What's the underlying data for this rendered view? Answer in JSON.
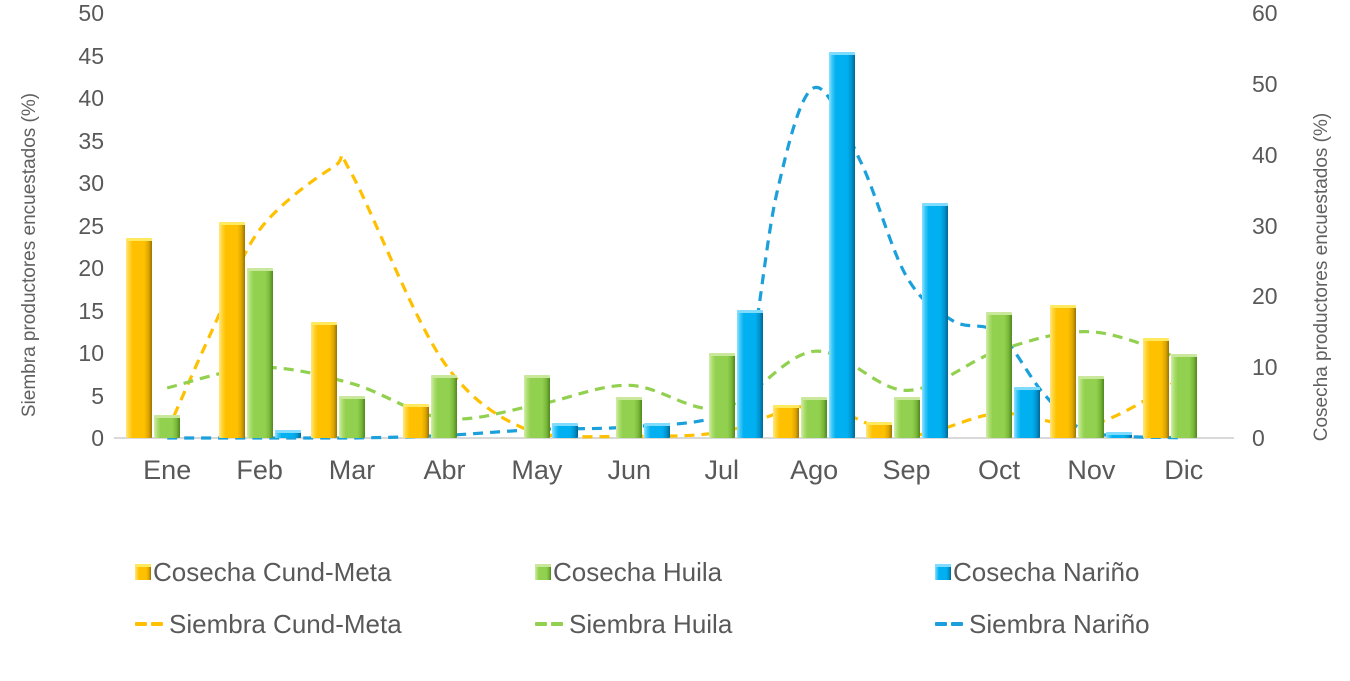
{
  "chart_data": {
    "type": "combo-bar-line",
    "categories": [
      "Ene",
      "Feb",
      "Mar",
      "Abr",
      "May",
      "Jun",
      "Jul",
      "Ago",
      "Sep",
      "Oct",
      "Nov",
      "Dic"
    ],
    "left_axis": {
      "title": "Siembra productores encuestados (%)",
      "min": 0,
      "max": 50,
      "step": 5,
      "ticks": [
        "50",
        "45",
        "40",
        "35",
        "30",
        "25",
        "20",
        "15",
        "10",
        "5",
        "0"
      ]
    },
    "right_axis": {
      "title": "Cosecha productores encuestados (%)",
      "min": 0,
      "max": 60,
      "step": 10,
      "ticks": [
        "60",
        "50",
        "40",
        "30",
        "20",
        "10",
        "0"
      ]
    },
    "gridlines": false,
    "legend_position": "bottom",
    "bar_series": [
      {
        "name": "Cosecha Cund-Meta",
        "axis": "right",
        "color": "#FFC000",
        "values": [
          28.3,
          30.5,
          16.4,
          4.8,
          0,
          0,
          0,
          4.6,
          2.2,
          0,
          18.8,
          14.1
        ]
      },
      {
        "name": "Cosecha Huila",
        "axis": "right",
        "color": "#92D050",
        "values": [
          3.2,
          24.0,
          5.9,
          8.9,
          8.9,
          5.8,
          12.0,
          5.8,
          5.8,
          17.8,
          8.8,
          11.8
        ]
      },
      {
        "name": "Cosecha Nariño",
        "axis": "right",
        "color": "#00B0F0",
        "values": [
          0,
          1.2,
          0,
          0,
          2.1,
          2.1,
          18.1,
          54.5,
          33.2,
          7.2,
          0.9,
          0
        ]
      }
    ],
    "line_series": [
      {
        "name": "Siembra Cund-Meta",
        "axis": "left",
        "color": "#FFC000",
        "style": "dashed",
        "points": [
          [
            0,
            0.8
          ],
          [
            0.5,
            13
          ],
          [
            1,
            24.5
          ],
          [
            1.8,
            31.9
          ],
          [
            2,
            31
          ],
          [
            3,
            8.8
          ],
          [
            4,
            0.5
          ],
          [
            5,
            0.2
          ],
          [
            6,
            0.7
          ],
          [
            7,
            3.8
          ],
          [
            8,
            0.3
          ],
          [
            9,
            2.9
          ],
          [
            10,
            1.6
          ],
          [
            11,
            7.2
          ]
        ]
      },
      {
        "name": "Siembra Huila",
        "axis": "left",
        "color": "#92D050",
        "style": "dashed",
        "points": [
          [
            0,
            5.9
          ],
          [
            1,
            8.3
          ],
          [
            2,
            6.4
          ],
          [
            3,
            2.3
          ],
          [
            4,
            3.9
          ],
          [
            5,
            6.2
          ],
          [
            6,
            3.5
          ],
          [
            7,
            10.2
          ],
          [
            8,
            5.6
          ],
          [
            9,
            10.3
          ],
          [
            10,
            12.5
          ],
          [
            11,
            9.2
          ]
        ]
      },
      {
        "name": "Siembra Nariño",
        "axis": "left",
        "color": "#1BA0DC",
        "style": "dashed",
        "points": [
          [
            0,
            0
          ],
          [
            1,
            0
          ],
          [
            2,
            0
          ],
          [
            3,
            0.3
          ],
          [
            4,
            1
          ],
          [
            5,
            1.3
          ],
          [
            6,
            2.8
          ],
          [
            6.3,
            9
          ],
          [
            6.6,
            29
          ],
          [
            7,
            41.2
          ],
          [
            7.5,
            32.6
          ],
          [
            8,
            19
          ],
          [
            8.5,
            13.8
          ],
          [
            9,
            12.3
          ],
          [
            9.5,
            5
          ],
          [
            10,
            0.6
          ],
          [
            11,
            0
          ]
        ]
      }
    ],
    "legend": {
      "rows": [
        [
          "Cosecha Cund-Meta",
          "Cosecha Huila",
          "Cosecha Nariño"
        ],
        [
          "Siembra Cund-Meta",
          "Siembra Huila",
          "Siembra Nariño"
        ]
      ]
    }
  }
}
